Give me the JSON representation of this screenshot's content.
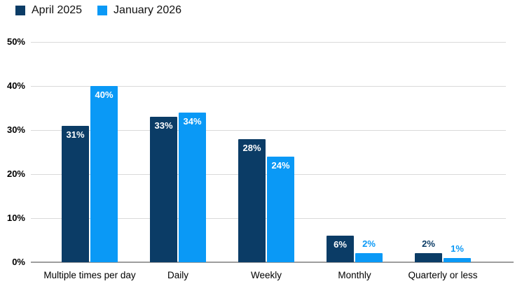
{
  "chart_data": {
    "type": "bar",
    "title": "",
    "xlabel": "",
    "ylabel": "",
    "categories": [
      "Multiple times per day",
      "Daily",
      "Weekly",
      "Monthly",
      "Quarterly or less"
    ],
    "series": [
      {
        "name": "April 2025",
        "color": "#0b3c66",
        "values": [
          31,
          33,
          28,
          6,
          2
        ],
        "data_labels": [
          "31%",
          "33%",
          "28%",
          "6%",
          "2%"
        ]
      },
      {
        "name": "January 2026",
        "color": "#0a99f6",
        "values": [
          40,
          34,
          24,
          2,
          1
        ],
        "data_labels": [
          "40%",
          "34%",
          "24%",
          "2%",
          "1%"
        ]
      }
    ],
    "ylim": [
      0,
      50
    ],
    "yticks": [
      {
        "value": 0,
        "label": "0%"
      },
      {
        "value": 10,
        "label": "10%"
      },
      {
        "value": 20,
        "label": "20%"
      },
      {
        "value": 30,
        "label": "30%"
      },
      {
        "value": 40,
        "label": "40%"
      },
      {
        "value": 50,
        "label": "50%"
      }
    ],
    "grid": "horizontal",
    "legend_position": "top-left",
    "colors": {
      "grid": "#d9d9d9",
      "axis": "#9e9e9e",
      "label_inside": "#ffffff",
      "tick_text": "#000000"
    },
    "data_label_rule": "inside bar in white when bar is tall; above bar in series color when bar is short"
  }
}
